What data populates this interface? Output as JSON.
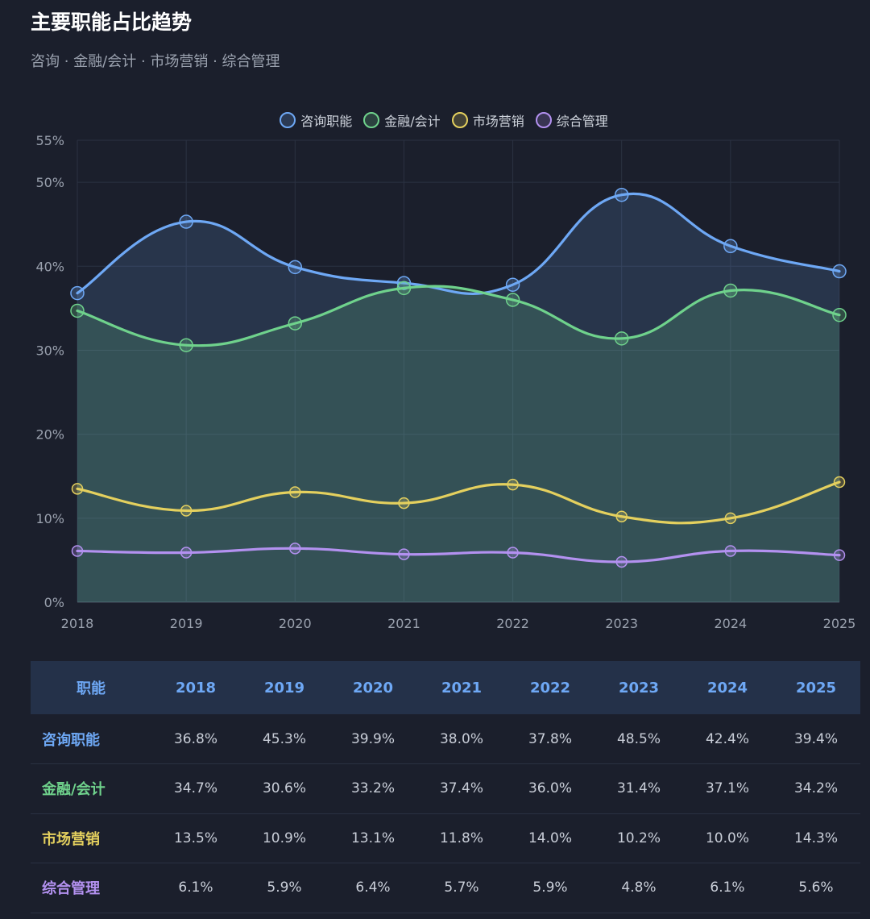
{
  "header": {
    "title": "主要职能占比趋势",
    "subtitle": "咨询 · 金融/会计 · 市场营销 · 综合管理"
  },
  "colors": {
    "consulting": "#6ea8f5",
    "finance": "#6fd28c",
    "marketing": "#e4d05e",
    "management": "#b391f0"
  },
  "chart_data": {
    "type": "line",
    "title": "主要职能占比趋势",
    "x": [
      "2018",
      "2019",
      "2020",
      "2021",
      "2022",
      "2023",
      "2024",
      "2025"
    ],
    "series": [
      {
        "name": "咨询职能",
        "key": "consulting",
        "values": [
          36.8,
          45.3,
          39.9,
          38.0,
          37.8,
          48.5,
          42.4,
          39.4
        ],
        "fill": true
      },
      {
        "name": "金融/会计",
        "key": "finance",
        "values": [
          34.7,
          30.6,
          33.2,
          37.4,
          36.0,
          31.4,
          37.1,
          34.2
        ],
        "fill": true
      },
      {
        "name": "市场营销",
        "key": "marketing",
        "values": [
          13.5,
          10.9,
          13.1,
          11.8,
          14.0,
          10.2,
          10.0,
          14.3
        ],
        "fill": false
      },
      {
        "name": "综合管理",
        "key": "management",
        "values": [
          6.1,
          5.9,
          6.4,
          5.7,
          5.9,
          4.8,
          6.1,
          5.6
        ],
        "fill": false
      }
    ],
    "y_ticks": [
      "0%",
      "10%",
      "20%",
      "30%",
      "40%",
      "50%",
      "55%"
    ],
    "ylim": [
      0,
      55
    ],
    "legend_position": "top-center",
    "grid": true
  },
  "table": {
    "header_label": "职能",
    "years": [
      "2018",
      "2019",
      "2020",
      "2021",
      "2022",
      "2023",
      "2024",
      "2025"
    ],
    "rows": [
      {
        "label": "咨询职能",
        "key": "consulting",
        "cells": [
          "36.8%",
          "45.3%",
          "39.9%",
          "38.0%",
          "37.8%",
          "48.5%",
          "42.4%",
          "39.4%"
        ]
      },
      {
        "label": "金融/会计",
        "key": "finance",
        "cells": [
          "34.7%",
          "30.6%",
          "33.2%",
          "37.4%",
          "36.0%",
          "31.4%",
          "37.1%",
          "34.2%"
        ]
      },
      {
        "label": "市场营销",
        "key": "marketing",
        "cells": [
          "13.5%",
          "10.9%",
          "13.1%",
          "11.8%",
          "14.0%",
          "10.2%",
          "10.0%",
          "14.3%"
        ]
      },
      {
        "label": "综合管理",
        "key": "management",
        "cells": [
          "6.1%",
          "5.9%",
          "6.4%",
          "5.7%",
          "5.9%",
          "4.8%",
          "6.1%",
          "5.6%"
        ]
      }
    ]
  }
}
